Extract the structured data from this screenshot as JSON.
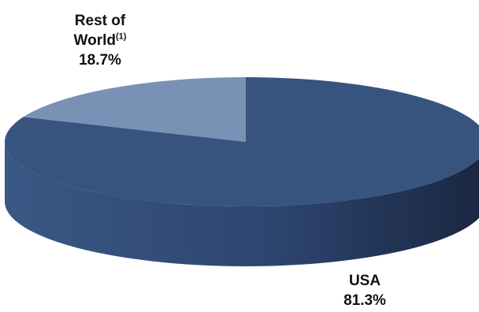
{
  "chart_data": {
    "type": "pie",
    "style": "3d",
    "title": "",
    "slices": [
      {
        "label_line1": "Rest of",
        "label_line2": "World",
        "footnote_marker": "(1)",
        "value_label": "18.7%",
        "value": 18.7,
        "color": "#7891b5"
      },
      {
        "label_line1": "USA",
        "value_label": "81.3%",
        "value": 81.3,
        "color": "#37547f"
      }
    ]
  },
  "colors": {
    "usa_top": "#37547f",
    "usa_side_light": "#3a5785",
    "usa_side_dark": "#1a2640",
    "row_top": "#7891b5"
  }
}
